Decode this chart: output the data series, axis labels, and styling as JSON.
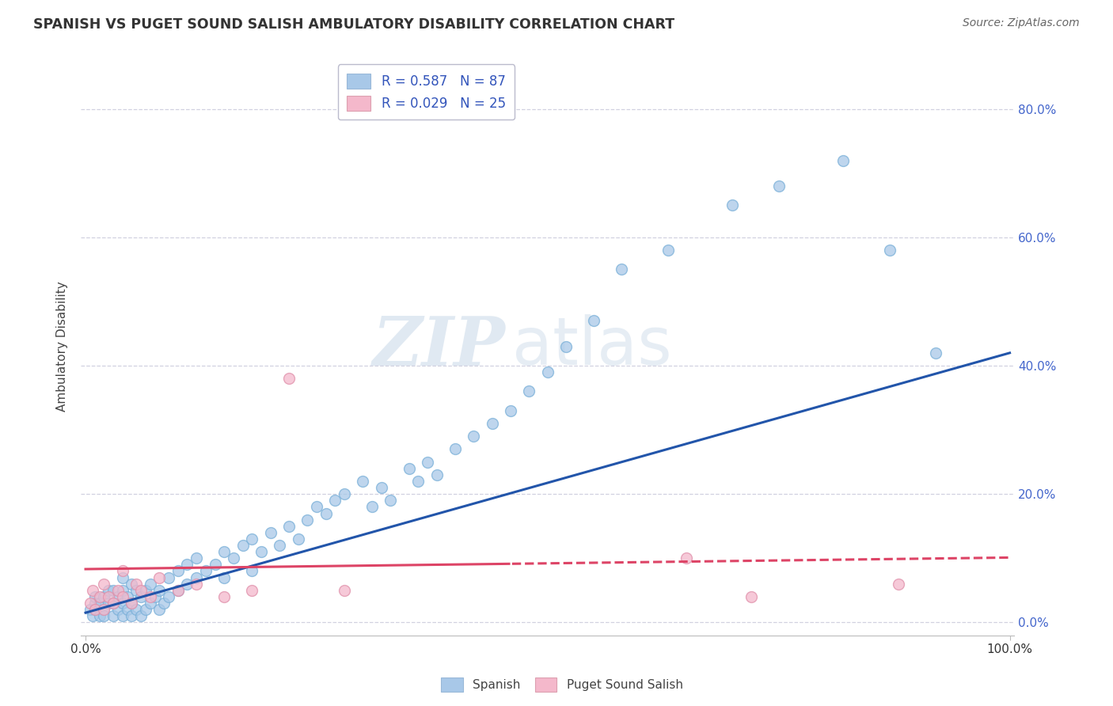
{
  "title": "SPANISH VS PUGET SOUND SALISH AMBULATORY DISABILITY CORRELATION CHART",
  "source": "Source: ZipAtlas.com",
  "ylabel": "Ambulatory Disability",
  "watermark_zip": "ZIP",
  "watermark_atlas": "atlas",
  "legend_r1": "R = 0.587",
  "legend_n1": "N = 87",
  "legend_r2": "R = 0.029",
  "legend_n2": "N = 25",
  "xlim": [
    -0.005,
    1.005
  ],
  "ylim": [
    -0.02,
    0.88
  ],
  "yticks": [
    0.0,
    0.2,
    0.4,
    0.6,
    0.8
  ],
  "ytick_labels": [
    "0.0%",
    "20.0%",
    "40.0%",
    "60.0%",
    "80.0%"
  ],
  "blue_color": "#a8c8e8",
  "pink_color": "#f4b8cb",
  "blue_line_color": "#2255aa",
  "pink_line_color": "#dd4466",
  "background_color": "#ffffff",
  "grid_color": "#ccccdd",
  "title_color": "#333333",
  "source_color": "#666666",
  "tick_color_y": "#4466cc",
  "tick_color_x": "#333333",
  "legend_text_color": "#3355bb",
  "spanish_x": [
    0.005,
    0.008,
    0.01,
    0.01,
    0.01,
    0.015,
    0.015,
    0.02,
    0.02,
    0.02,
    0.025,
    0.025,
    0.03,
    0.03,
    0.03,
    0.035,
    0.035,
    0.04,
    0.04,
    0.04,
    0.04,
    0.045,
    0.045,
    0.05,
    0.05,
    0.05,
    0.055,
    0.055,
    0.06,
    0.06,
    0.065,
    0.065,
    0.07,
    0.07,
    0.075,
    0.08,
    0.08,
    0.085,
    0.09,
    0.09,
    0.1,
    0.1,
    0.11,
    0.11,
    0.12,
    0.12,
    0.13,
    0.14,
    0.15,
    0.15,
    0.16,
    0.17,
    0.18,
    0.18,
    0.19,
    0.2,
    0.21,
    0.22,
    0.23,
    0.24,
    0.25,
    0.26,
    0.27,
    0.28,
    0.3,
    0.31,
    0.32,
    0.33,
    0.35,
    0.36,
    0.37,
    0.38,
    0.4,
    0.42,
    0.44,
    0.46,
    0.48,
    0.5,
    0.52,
    0.55,
    0.58,
    0.63,
    0.7,
    0.75,
    0.82,
    0.87,
    0.92
  ],
  "spanish_y": [
    0.02,
    0.01,
    0.03,
    0.02,
    0.04,
    0.01,
    0.03,
    0.02,
    0.04,
    0.01,
    0.03,
    0.05,
    0.01,
    0.03,
    0.05,
    0.02,
    0.04,
    0.01,
    0.03,
    0.05,
    0.07,
    0.02,
    0.04,
    0.01,
    0.03,
    0.06,
    0.02,
    0.05,
    0.01,
    0.04,
    0.02,
    0.05,
    0.03,
    0.06,
    0.04,
    0.02,
    0.05,
    0.03,
    0.04,
    0.07,
    0.05,
    0.08,
    0.06,
    0.09,
    0.07,
    0.1,
    0.08,
    0.09,
    0.07,
    0.11,
    0.1,
    0.12,
    0.08,
    0.13,
    0.11,
    0.14,
    0.12,
    0.15,
    0.13,
    0.16,
    0.18,
    0.17,
    0.19,
    0.2,
    0.22,
    0.18,
    0.21,
    0.19,
    0.24,
    0.22,
    0.25,
    0.23,
    0.27,
    0.29,
    0.31,
    0.33,
    0.36,
    0.39,
    0.43,
    0.47,
    0.55,
    0.58,
    0.65,
    0.68,
    0.72,
    0.58,
    0.42
  ],
  "puget_x": [
    0.005,
    0.008,
    0.01,
    0.015,
    0.02,
    0.02,
    0.025,
    0.03,
    0.035,
    0.04,
    0.04,
    0.05,
    0.055,
    0.06,
    0.07,
    0.08,
    0.1,
    0.12,
    0.15,
    0.18,
    0.22,
    0.28,
    0.65,
    0.72,
    0.88
  ],
  "puget_y": [
    0.03,
    0.05,
    0.02,
    0.04,
    0.06,
    0.02,
    0.04,
    0.03,
    0.05,
    0.04,
    0.08,
    0.03,
    0.06,
    0.05,
    0.04,
    0.07,
    0.05,
    0.06,
    0.04,
    0.05,
    0.38,
    0.05,
    0.1,
    0.04,
    0.06
  ]
}
